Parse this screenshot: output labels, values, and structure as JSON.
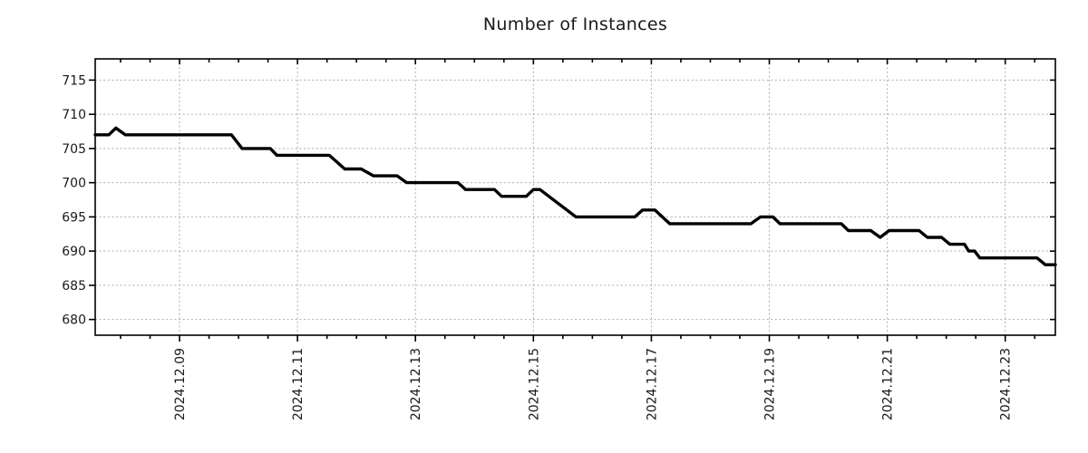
{
  "title": "Number of Instances",
  "colors": {
    "background": "#ffffff",
    "line": "#000000",
    "grid": "#adadad",
    "axis": "#000000",
    "text": "#1a1a1a"
  },
  "chart_data": {
    "type": "line",
    "title": "Number of Instances",
    "xlabel": "",
    "ylabel": "",
    "x_unit": "day of December 2024 (fractional)",
    "xlim": [
      7.57,
      23.85
    ],
    "ylim": [
      677.7,
      718.1
    ],
    "y_ticks": [
      680,
      685,
      690,
      695,
      700,
      705,
      710,
      715
    ],
    "x_major_ticks": [
      {
        "day": 9,
        "label": "2024.12.09"
      },
      {
        "day": 11,
        "label": "2024.12.11"
      },
      {
        "day": 13,
        "label": "2024.12.13"
      },
      {
        "day": 15,
        "label": "2024.12.15"
      },
      {
        "day": 17,
        "label": "2024.12.17"
      },
      {
        "day": 19,
        "label": "2024.12.19"
      },
      {
        "day": 21,
        "label": "2024.12.21"
      },
      {
        "day": 23,
        "label": "2024.12.23"
      }
    ],
    "x_minor_step": 0.5,
    "grid": {
      "show": true,
      "style": "dotted",
      "which": "major",
      "axes": "both"
    },
    "legend": "none",
    "series": [
      {
        "name": "instances",
        "color": "#000000",
        "line_width": 3.4,
        "points": [
          [
            7.57,
            707
          ],
          [
            7.8,
            707
          ],
          [
            7.92,
            708
          ],
          [
            8.08,
            707
          ],
          [
            9.88,
            707
          ],
          [
            10.06,
            705
          ],
          [
            10.54,
            705
          ],
          [
            10.65,
            704
          ],
          [
            11.54,
            704
          ],
          [
            11.8,
            702
          ],
          [
            12.08,
            702
          ],
          [
            12.29,
            701
          ],
          [
            12.69,
            701
          ],
          [
            12.85,
            700
          ],
          [
            13.72,
            700
          ],
          [
            13.85,
            699
          ],
          [
            14.34,
            699
          ],
          [
            14.46,
            698
          ],
          [
            14.88,
            698
          ],
          [
            15.0,
            699
          ],
          [
            15.11,
            699
          ],
          [
            15.72,
            695
          ],
          [
            16.72,
            695
          ],
          [
            16.85,
            696
          ],
          [
            17.06,
            696
          ],
          [
            17.31,
            694
          ],
          [
            18.69,
            694
          ],
          [
            18.85,
            695
          ],
          [
            19.06,
            695
          ],
          [
            19.18,
            694
          ],
          [
            20.22,
            694
          ],
          [
            20.34,
            693
          ],
          [
            20.72,
            693
          ],
          [
            20.88,
            692
          ],
          [
            21.03,
            693
          ],
          [
            21.54,
            693
          ],
          [
            21.68,
            692
          ],
          [
            21.92,
            692
          ],
          [
            22.06,
            691
          ],
          [
            22.31,
            691
          ],
          [
            22.38,
            690
          ],
          [
            22.48,
            690
          ],
          [
            22.57,
            689
          ],
          [
            23.54,
            689
          ],
          [
            23.68,
            688
          ],
          [
            23.85,
            688
          ]
        ]
      }
    ]
  }
}
